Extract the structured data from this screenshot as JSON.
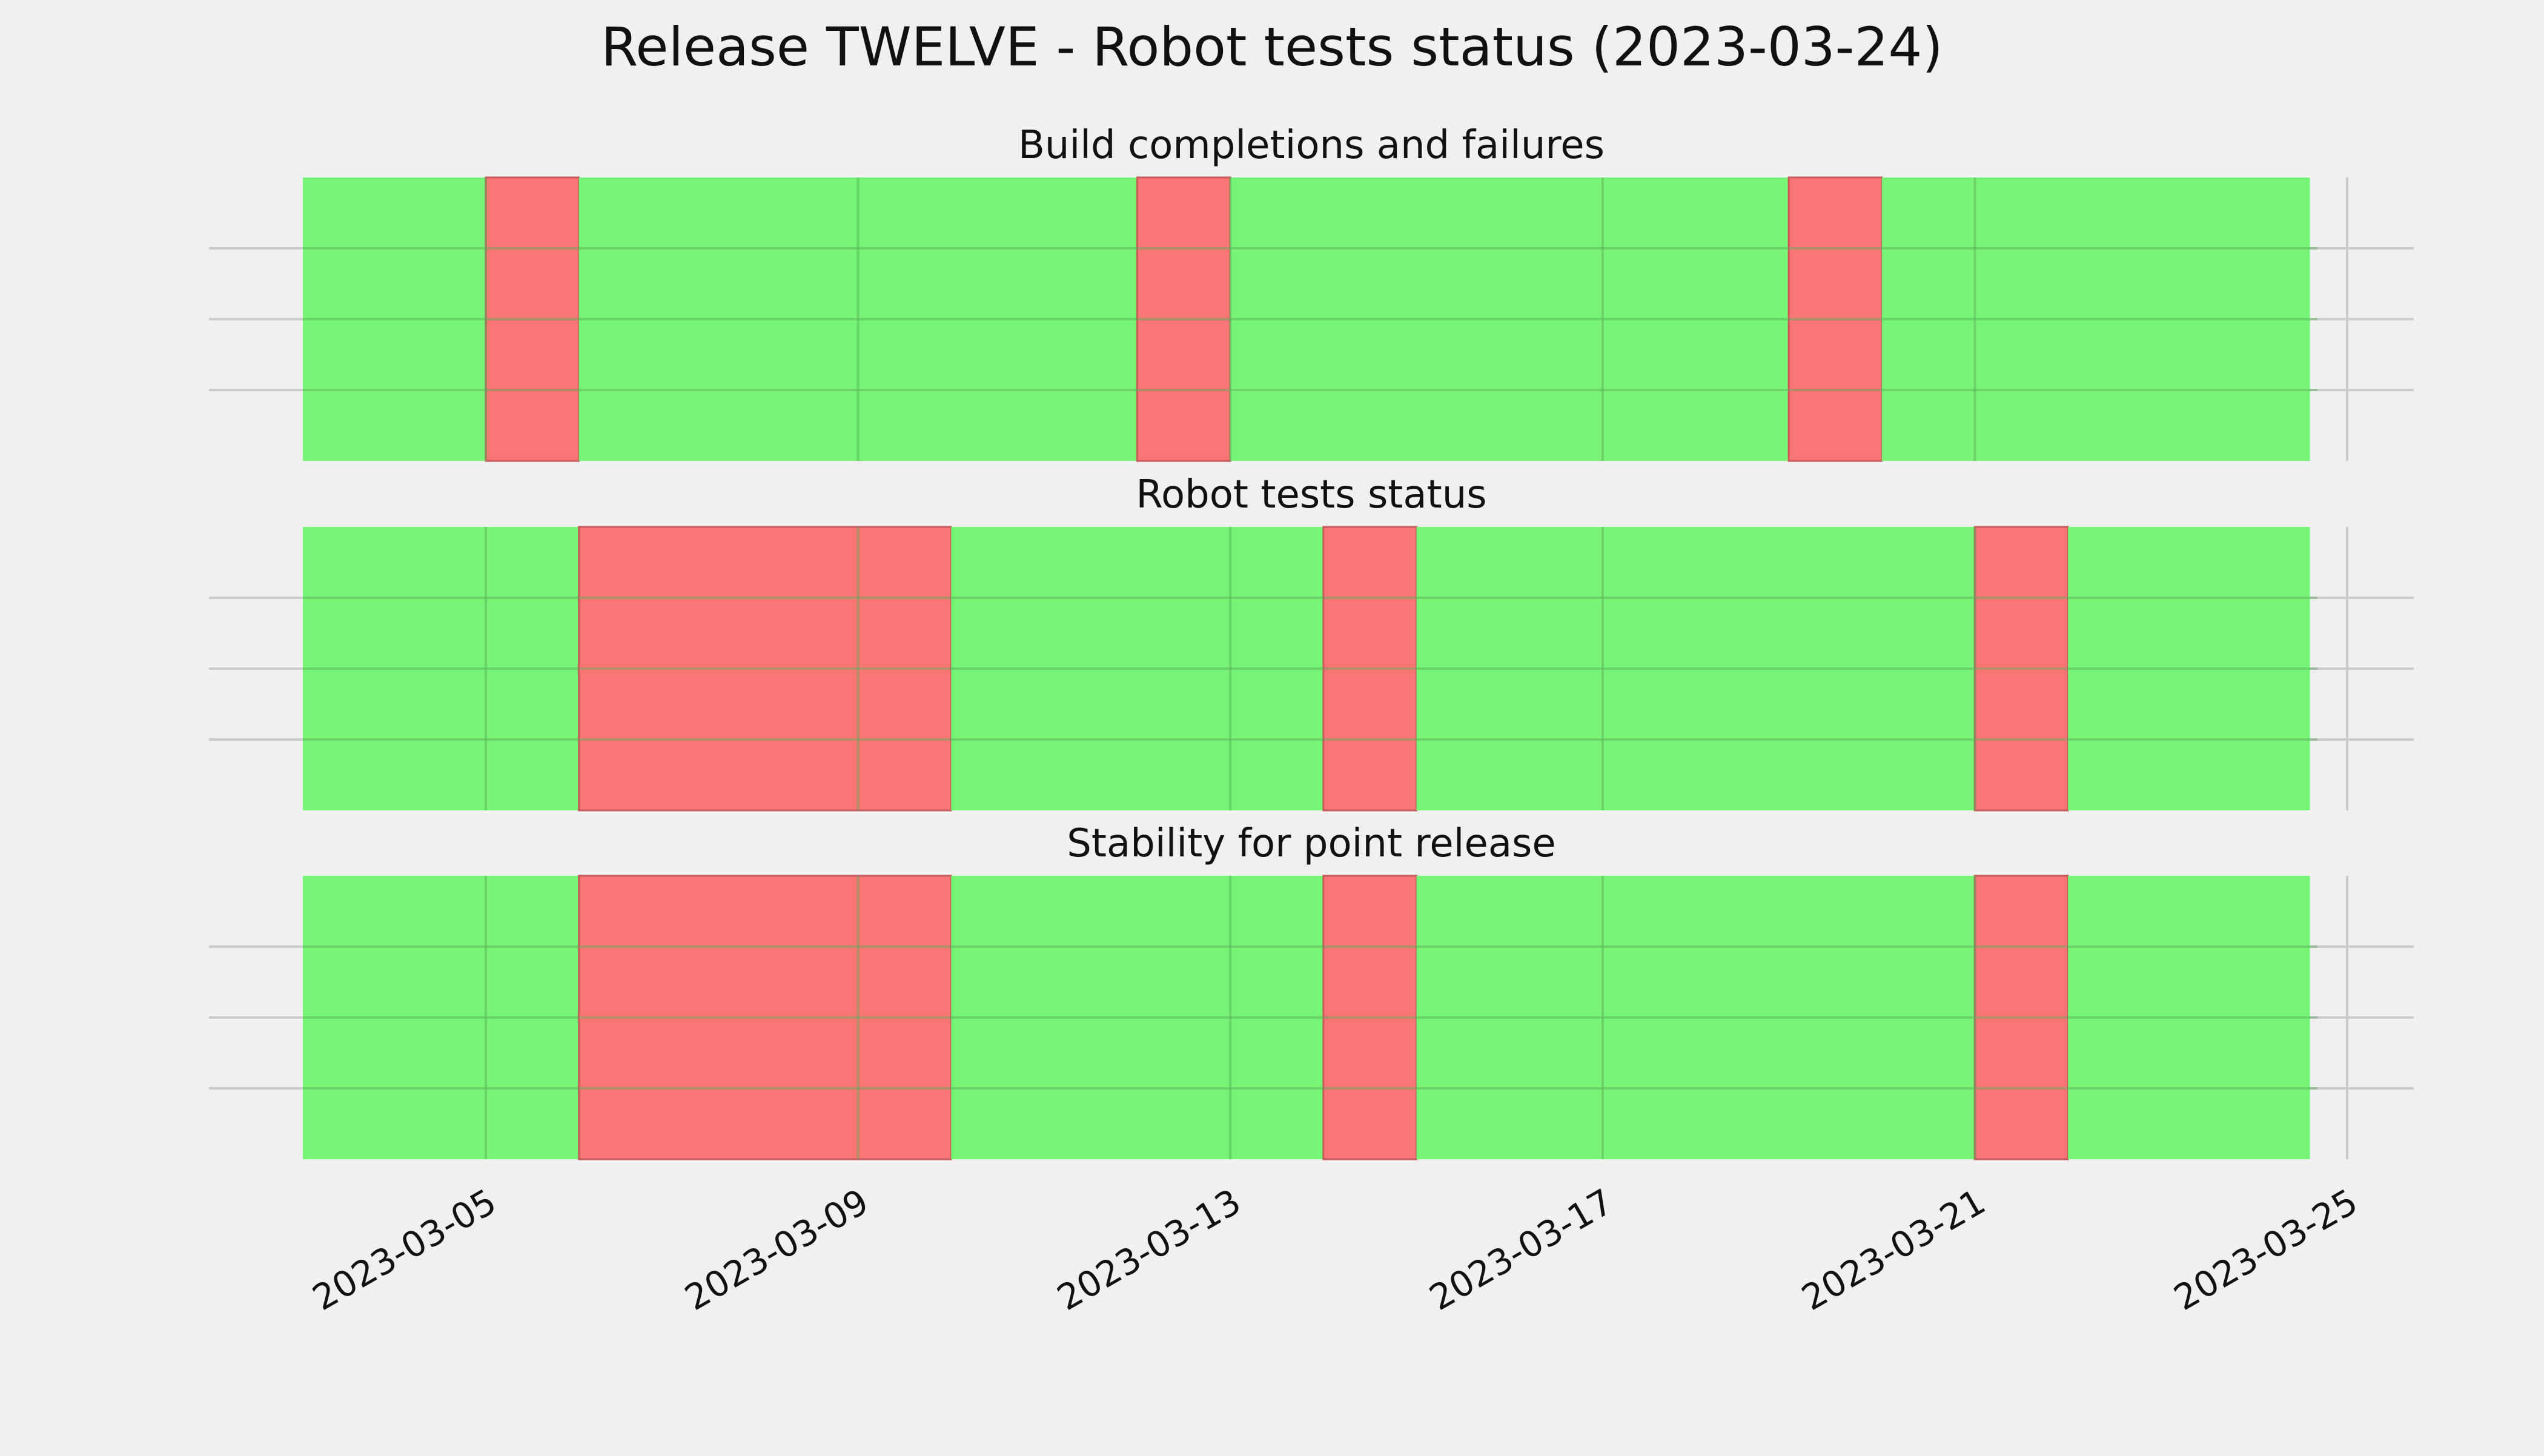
{
  "chart_data": {
    "type": "timeline",
    "title": "Release TWELVE - Robot tests status (2023-03-24)",
    "x_axis": {
      "type": "date",
      "range": [
        "2023-03-03",
        "2023-03-26"
      ],
      "ticks": [
        "2023-03-05",
        "2023-03-09",
        "2023-03-13",
        "2023-03-17",
        "2023-03-21",
        "2023-03-25"
      ],
      "tick_label_rotation_deg": 30
    },
    "y_axis": {
      "tick_labels_visible": false,
      "gridlines": 3
    },
    "grid": true,
    "status_colors": {
      "pass": "#76f476",
      "fail": "#f77575"
    },
    "panels": [
      {
        "title": "Build completions and failures",
        "segments": [
          {
            "start": "2023-03-03",
            "end": "2023-03-05",
            "status": "pass"
          },
          {
            "start": "2023-03-05",
            "end": "2023-03-06",
            "status": "fail"
          },
          {
            "start": "2023-03-06",
            "end": "2023-03-12",
            "status": "pass"
          },
          {
            "start": "2023-03-12",
            "end": "2023-03-13",
            "status": "fail"
          },
          {
            "start": "2023-03-13",
            "end": "2023-03-19",
            "status": "pass"
          },
          {
            "start": "2023-03-19",
            "end": "2023-03-20",
            "status": "fail"
          },
          {
            "start": "2023-03-20",
            "end": "2023-03-24.6",
            "status": "pass"
          }
        ]
      },
      {
        "title": "Robot tests status",
        "segments": [
          {
            "start": "2023-03-03",
            "end": "2023-03-06",
            "status": "pass"
          },
          {
            "start": "2023-03-06",
            "end": "2023-03-10",
            "status": "fail"
          },
          {
            "start": "2023-03-10",
            "end": "2023-03-14",
            "status": "pass"
          },
          {
            "start": "2023-03-14",
            "end": "2023-03-15",
            "status": "fail"
          },
          {
            "start": "2023-03-15",
            "end": "2023-03-21",
            "status": "pass"
          },
          {
            "start": "2023-03-21",
            "end": "2023-03-22",
            "status": "fail"
          },
          {
            "start": "2023-03-22",
            "end": "2023-03-24.6",
            "status": "pass"
          }
        ]
      },
      {
        "title": "Stability for point release",
        "segments": [
          {
            "start": "2023-03-03",
            "end": "2023-03-06",
            "status": "pass"
          },
          {
            "start": "2023-03-06",
            "end": "2023-03-10",
            "status": "fail"
          },
          {
            "start": "2023-03-10",
            "end": "2023-03-14",
            "status": "pass"
          },
          {
            "start": "2023-03-14",
            "end": "2023-03-15",
            "status": "fail"
          },
          {
            "start": "2023-03-15",
            "end": "2023-03-21",
            "status": "pass"
          },
          {
            "start": "2023-03-21",
            "end": "2023-03-22",
            "status": "fail"
          },
          {
            "start": "2023-03-22",
            "end": "2023-03-24.6",
            "status": "pass"
          }
        ]
      }
    ]
  }
}
